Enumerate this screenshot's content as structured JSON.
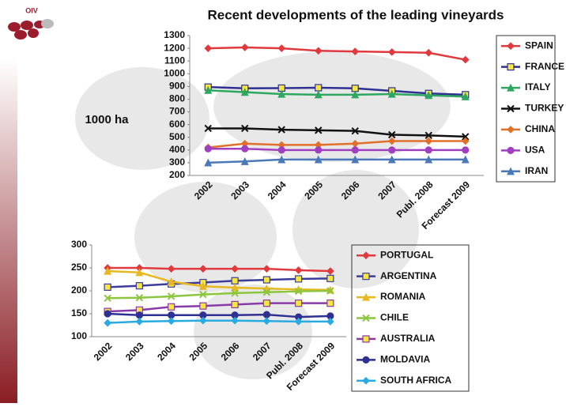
{
  "logo": "OIV",
  "chart_data": [
    {
      "type": "line",
      "title": "Recent developments of the leading vineyards",
      "y_label": "1000 ha",
      "categories": [
        "2002",
        "2003",
        "2004",
        "2005",
        "2006",
        "2007",
        "Publ. 2008",
        "Forecast 2009"
      ],
      "ylim": [
        200,
        1300
      ],
      "yticks": [
        200,
        300,
        400,
        500,
        600,
        700,
        800,
        900,
        1000,
        1100,
        1200,
        1300
      ],
      "series": [
        {
          "name": "SPAIN",
          "color": "#e0393e",
          "marker": "diamond",
          "values": [
            1200,
            1207,
            1200,
            1180,
            1175,
            1170,
            1165,
            1110
          ]
        },
        {
          "name": "FRANCE",
          "color": "#2e3192",
          "marker": "square",
          "values": [
            895,
            885,
            887,
            890,
            885,
            865,
            845,
            835
          ]
        },
        {
          "name": "ITALY",
          "color": "#2ea860",
          "marker": "triangle",
          "values": [
            870,
            855,
            840,
            835,
            835,
            840,
            830,
            820
          ]
        },
        {
          "name": "TURKEY",
          "color": "#111111",
          "marker": "x",
          "values": [
            570,
            570,
            560,
            555,
            550,
            520,
            515,
            505
          ]
        },
        {
          "name": "CHINA",
          "color": "#e0702a",
          "marker": "diamond",
          "values": [
            420,
            450,
            440,
            440,
            450,
            470,
            470,
            470
          ]
        },
        {
          "name": "USA",
          "color": "#a040c0",
          "marker": "circle",
          "values": [
            410,
            410,
            400,
            400,
            400,
            400,
            400,
            400
          ]
        },
        {
          "name": "IRAN",
          "color": "#4a78b8",
          "marker": "triangle",
          "values": [
            300,
            310,
            325,
            325,
            325,
            325,
            325,
            325
          ]
        }
      ]
    },
    {
      "type": "line",
      "categories": [
        "2002",
        "2003",
        "2004",
        "2005",
        "2006",
        "2007",
        "Publ. 2008",
        "Forecast 2009"
      ],
      "ylim": [
        100,
        300
      ],
      "yticks": [
        100,
        150,
        200,
        250,
        300
      ],
      "series": [
        {
          "name": "PORTUGAL",
          "color": "#e0393e",
          "marker": "diamond",
          "values": [
            250,
            250,
            248,
            248,
            248,
            248,
            245,
            243
          ]
        },
        {
          "name": "ARGENTINA",
          "color": "#3c3c9c",
          "marker": "square",
          "values": [
            208,
            211,
            215,
            218,
            222,
            224,
            226,
            227
          ]
        },
        {
          "name": "ROMANIA",
          "color": "#e8b820",
          "marker": "triangle",
          "values": [
            243,
            240,
            220,
            210,
            207,
            205,
            203,
            202
          ]
        },
        {
          "name": "CHILE",
          "color": "#8cc63f",
          "marker": "x",
          "values": [
            184,
            185,
            188,
            192,
            195,
            197,
            199,
            200
          ]
        },
        {
          "name": "AUSTRALIA",
          "color": "#8a3aa8",
          "marker": "square",
          "values": [
            155,
            158,
            165,
            167,
            170,
            173,
            173,
            173
          ]
        },
        {
          "name": "MOLDAVIA",
          "color": "#2e3192",
          "marker": "circle",
          "values": [
            150,
            147,
            147,
            147,
            147,
            148,
            143,
            145
          ]
        },
        {
          "name": "SOUTH AFRICA",
          "color": "#29abe2",
          "marker": "diamond",
          "values": [
            130,
            133,
            134,
            135,
            135,
            134,
            133,
            133
          ]
        }
      ]
    }
  ]
}
